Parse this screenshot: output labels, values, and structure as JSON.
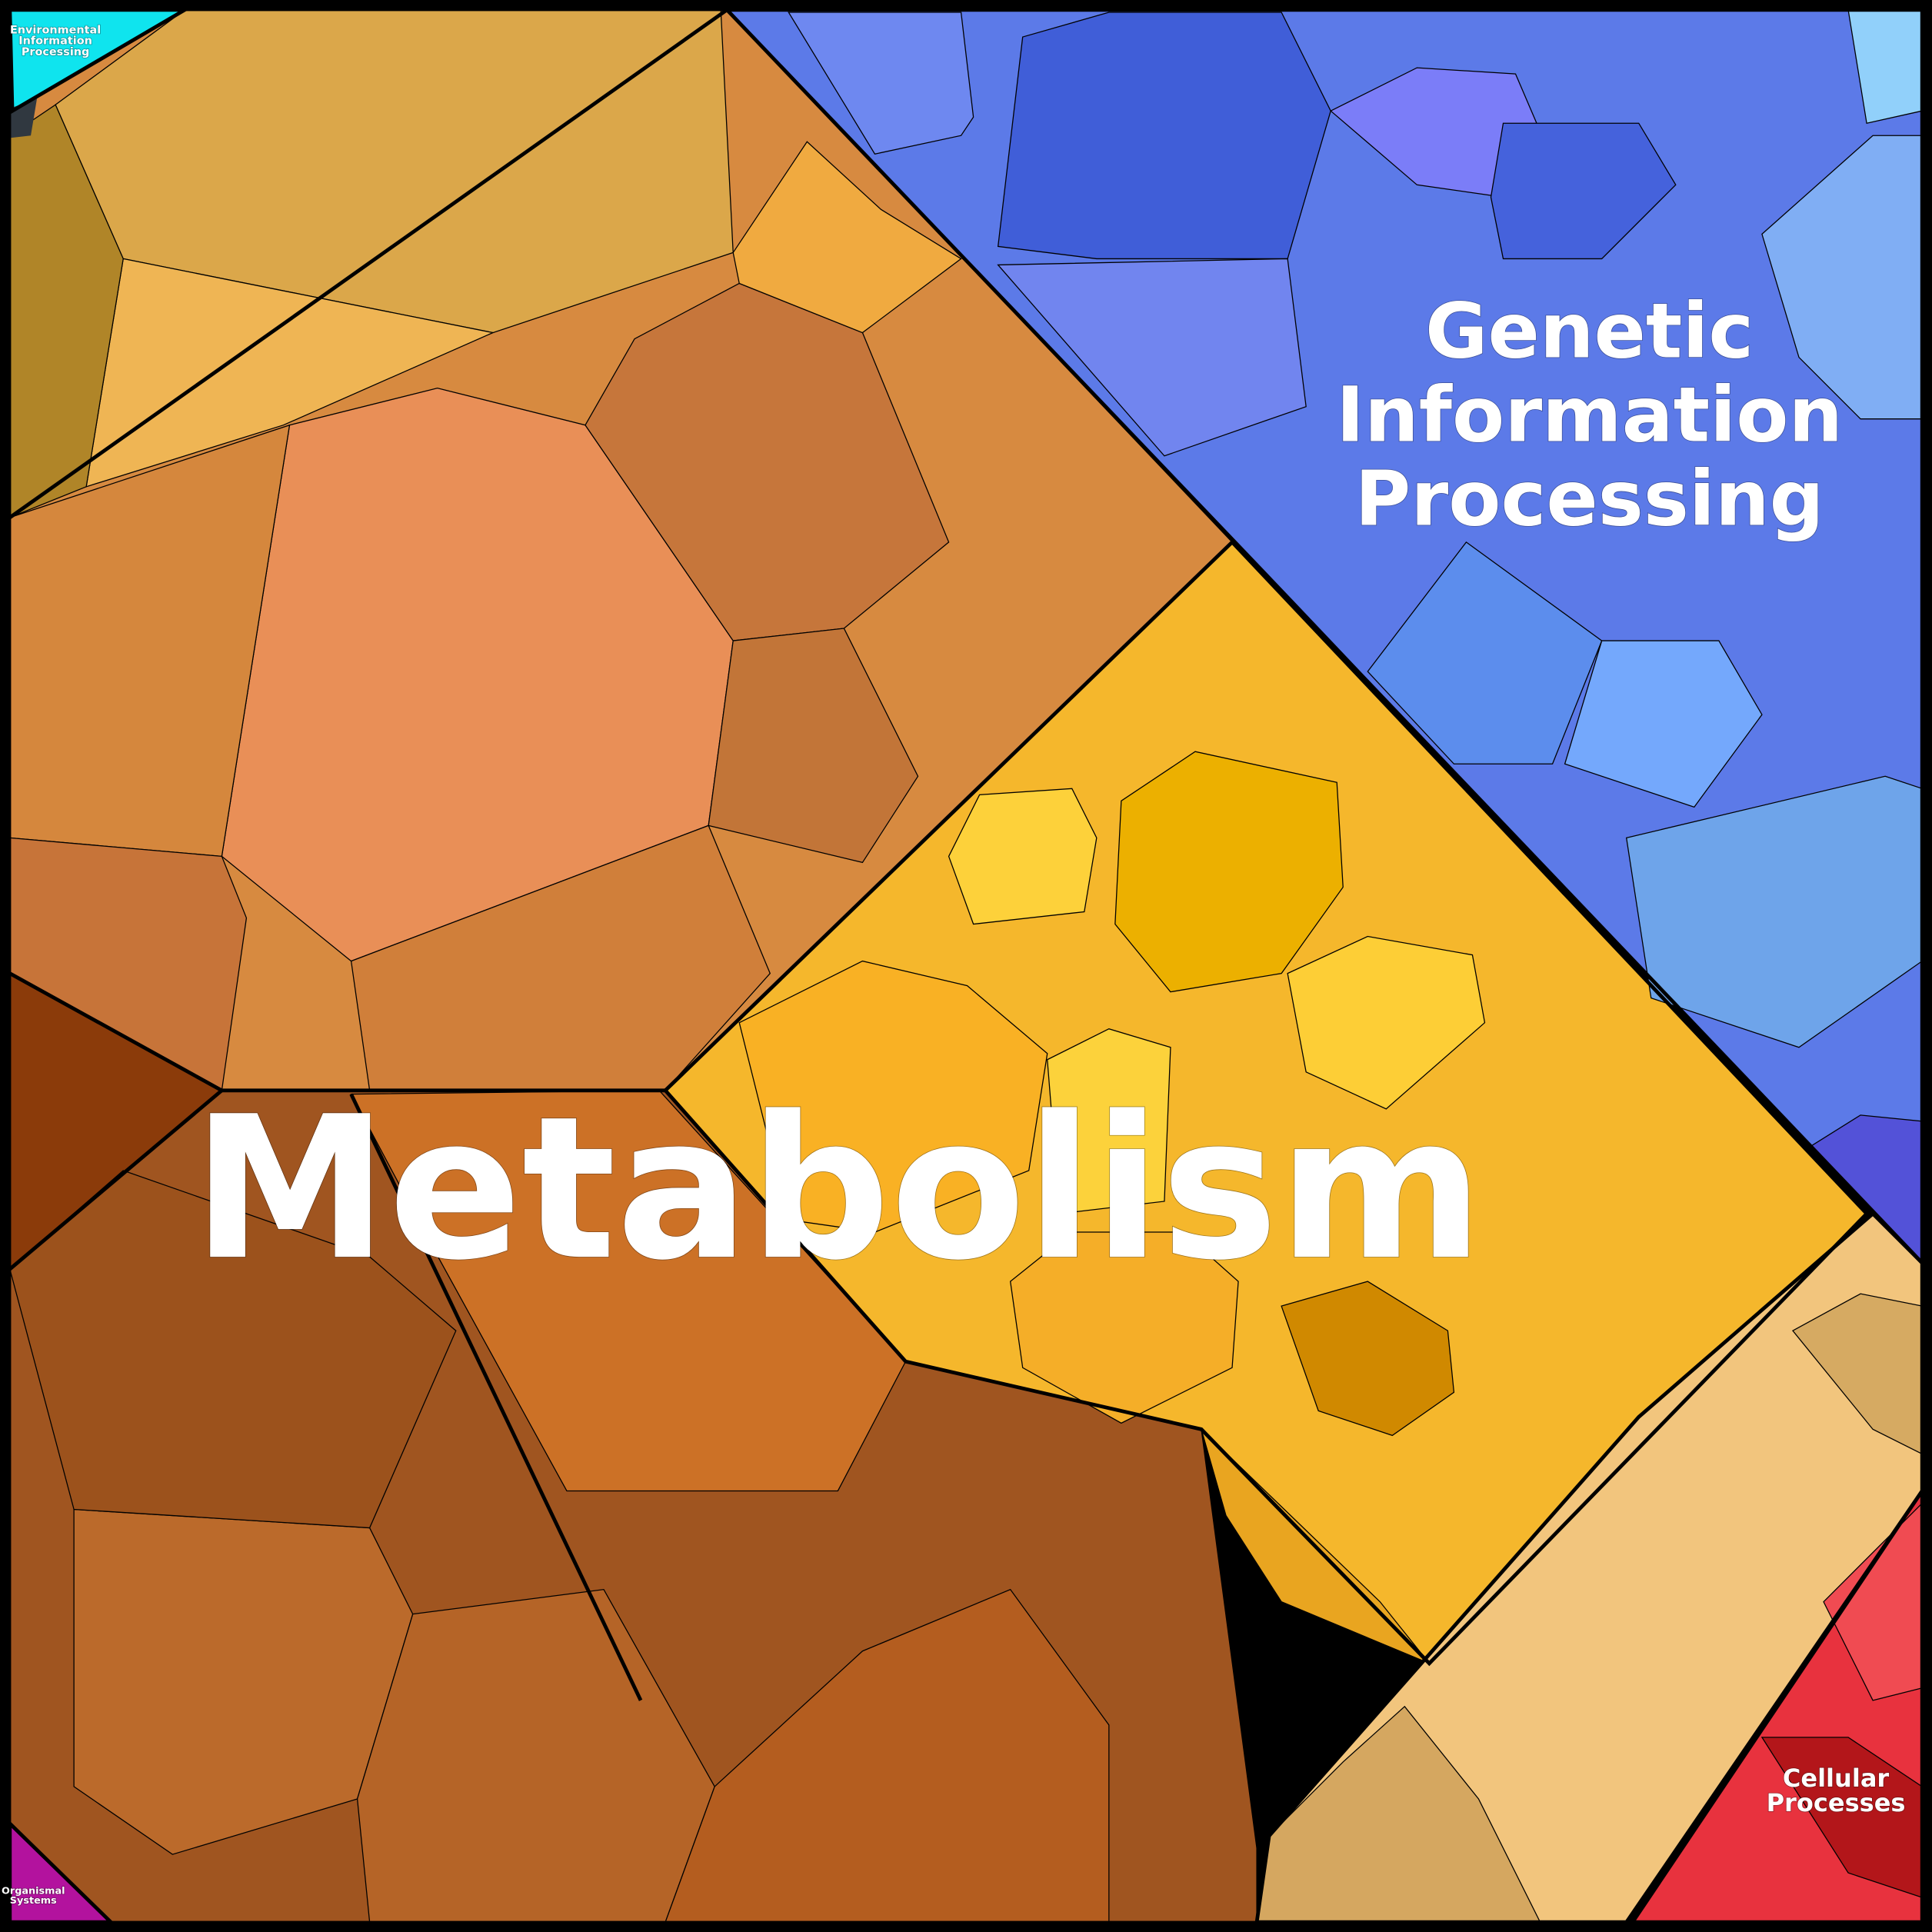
{
  "regions": [
    {
      "label": [
        "Environmental",
        "Information",
        "Processing"
      ]
    },
    {
      "label": [
        "Genetic",
        "Information",
        "Processing"
      ]
    },
    {
      "label": [
        "Metabolism"
      ]
    },
    {
      "label": [
        "Cellular",
        "Processes"
      ]
    },
    {
      "label": [
        "Organismal",
        "Systems"
      ]
    }
  ]
}
